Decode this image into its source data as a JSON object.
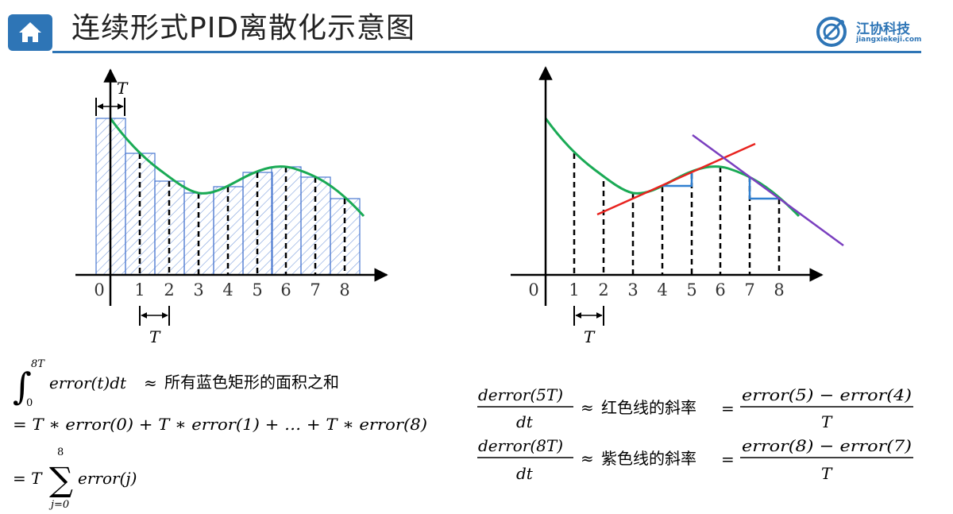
{
  "header": {
    "title": "连续形式PID离散化示意图",
    "logo_name": "江协科技",
    "logo_url": "jiangxiekeji.com"
  },
  "colors": {
    "accent": "#2e75b6",
    "curve": "#1aaa55",
    "rect_stroke": "#4a78d0",
    "red_line": "#e8231f",
    "purple_line": "#7a3fbf",
    "step_blue": "#2f7fd0"
  },
  "left_diagram": {
    "x_ticks": [
      "0",
      "1",
      "2",
      "3",
      "4",
      "5",
      "6",
      "7",
      "8"
    ],
    "top_period_label": "T",
    "bottom_period_label": "T"
  },
  "right_diagram": {
    "x_ticks": [
      "0",
      "1",
      "2",
      "3",
      "4",
      "5",
      "6",
      "7",
      "8"
    ],
    "bottom_period_label": "T"
  },
  "formulas": {
    "integral_upper": "8T",
    "integral_lower": "0",
    "integral_expr": "error(t)dt",
    "approx": "≈",
    "integral_desc": "所有蓝色矩形的面积之和",
    "line2": "= T ∗ error(0) + T ∗ error(1) + … + T ∗ error(8)",
    "sum_prefix": "= T",
    "sum_upper": "8",
    "sum_lower": "j=0",
    "sum_term": "error(j)",
    "deriv1_num": "derror(5T)",
    "deriv1_den": "dt",
    "deriv1_desc": "红色线的斜率",
    "deriv1_rhs_num": "error(5) − error(4)",
    "deriv1_rhs_den": "T",
    "deriv2_num": "derror(8T)",
    "deriv2_den": "dt",
    "deriv2_desc": "紫色线的斜率",
    "deriv2_rhs_num": "error(8) − error(7)",
    "deriv2_rhs_den": "T",
    "equals": "="
  }
}
